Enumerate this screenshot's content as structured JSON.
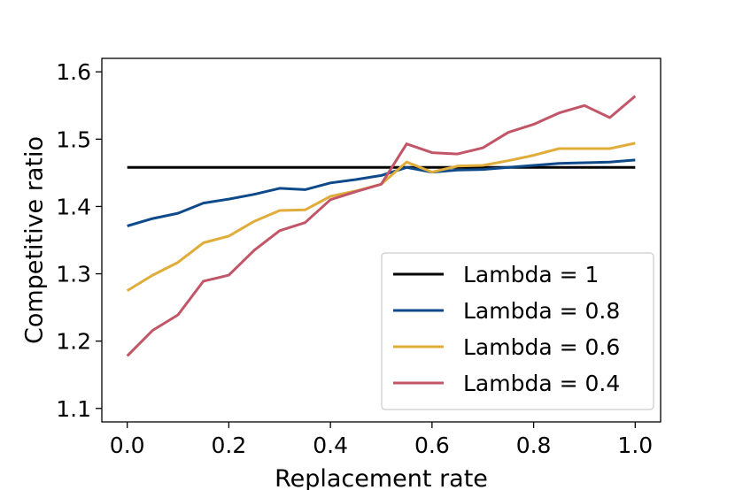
{
  "chart_data": {
    "type": "line",
    "title": "",
    "xlabel": "Replacement rate",
    "ylabel": "Competitive ratio",
    "xlim": [
      -0.05,
      1.05
    ],
    "ylim": [
      1.08,
      1.62
    ],
    "x_ticks": [
      0.0,
      0.2,
      0.4,
      0.6,
      0.8,
      1.0
    ],
    "x_tick_labels": [
      "0.0",
      "0.2",
      "0.4",
      "0.6",
      "0.8",
      "1.0"
    ],
    "y_ticks": [
      1.1,
      1.2,
      1.3,
      1.4,
      1.5,
      1.6
    ],
    "y_tick_labels": [
      "1.1",
      "1.2",
      "1.3",
      "1.4",
      "1.5",
      "1.6"
    ],
    "grid": false,
    "legend_position": "lower-right",
    "x": [
      0.0,
      0.05,
      0.1,
      0.15,
      0.2,
      0.25,
      0.3,
      0.35,
      0.4,
      0.45,
      0.5,
      0.55,
      0.6,
      0.65,
      0.7,
      0.75,
      0.8,
      0.85,
      0.9,
      0.95,
      1.0
    ],
    "series": [
      {
        "name": "Lambda = 1",
        "color": "#000000",
        "values": [
          1.458,
          1.458,
          1.458,
          1.458,
          1.458,
          1.458,
          1.458,
          1.458,
          1.458,
          1.458,
          1.458,
          1.458,
          1.458,
          1.458,
          1.458,
          1.458,
          1.458,
          1.458,
          1.458,
          1.458,
          1.458
        ]
      },
      {
        "name": "Lambda = 0.8",
        "color": "#0e4a8a",
        "values": [
          1.371,
          1.382,
          1.39,
          1.405,
          1.411,
          1.418,
          1.427,
          1.425,
          1.435,
          1.44,
          1.446,
          1.458,
          1.451,
          1.454,
          1.455,
          1.458,
          1.461,
          1.464,
          1.465,
          1.466,
          1.469
        ]
      },
      {
        "name": "Lambda = 0.6",
        "color": "#e0ac3a",
        "values": [
          1.275,
          1.298,
          1.317,
          1.346,
          1.356,
          1.378,
          1.394,
          1.395,
          1.415,
          1.423,
          1.433,
          1.466,
          1.451,
          1.46,
          1.461,
          1.468,
          1.476,
          1.486,
          1.486,
          1.486,
          1.494
        ]
      },
      {
        "name": "Lambda = 0.4",
        "color": "#c25567",
        "values": [
          1.178,
          1.216,
          1.239,
          1.289,
          1.298,
          1.335,
          1.364,
          1.376,
          1.41,
          1.422,
          1.433,
          1.493,
          1.48,
          1.478,
          1.487,
          1.51,
          1.522,
          1.539,
          1.55,
          1.532,
          1.564
        ]
      }
    ]
  }
}
